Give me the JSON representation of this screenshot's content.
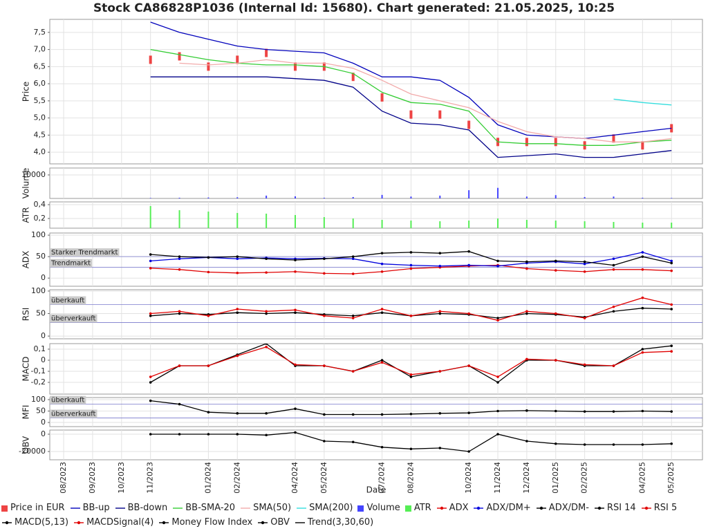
{
  "title": "Stock CA86828P1036 (Internal Id: 15680). Chart generated: 21.05.2025, 10:25",
  "x_axis": {
    "label": "Date",
    "xlim": [
      -0.48,
      22.07
    ],
    "x": [
      3,
      4,
      5,
      6,
      7,
      8,
      9,
      10,
      11,
      12,
      13,
      14,
      15,
      16,
      17,
      18,
      19,
      20,
      21
    ],
    "xticks": [
      {
        "value": 0,
        "label": "08/2023"
      },
      {
        "value": 1,
        "label": "09/2023"
      },
      {
        "value": 2,
        "label": "10/2023"
      },
      {
        "value": 3,
        "label": "11/2023"
      },
      {
        "value": 5,
        "label": "01/2024"
      },
      {
        "value": 6,
        "label": "02/2024"
      },
      {
        "value": 8,
        "label": "04/2024"
      },
      {
        "value": 9,
        "label": "05/2024"
      },
      {
        "value": 11,
        "label": "07/2024"
      },
      {
        "value": 12,
        "label": "08/2024"
      },
      {
        "value": 14,
        "label": "10/2024"
      },
      {
        "value": 15,
        "label": "11/2024"
      },
      {
        "value": 16,
        "label": "12/2024"
      },
      {
        "value": 17,
        "label": "01/2025"
      },
      {
        "value": 18,
        "label": "02/2025"
      },
      {
        "value": 20,
        "label": "04/2025"
      },
      {
        "value": 21,
        "label": "05/2025"
      }
    ]
  },
  "chart_data": [
    {
      "type": "line",
      "ylabel": "Price",
      "grid": true,
      "ylim": [
        3.66,
        7.88
      ],
      "yticks": [
        {
          "value": 4,
          "label": "4,0"
        },
        {
          "value": 4.5,
          "label": "4,5"
        },
        {
          "value": 5,
          "label": "5,0"
        },
        {
          "value": 5.5,
          "label": "5,5"
        },
        {
          "value": 6,
          "label": "6,0"
        },
        {
          "value": 6.5,
          "label": "6,5"
        },
        {
          "value": 7,
          "label": "7,0"
        },
        {
          "value": 7.5,
          "label": "7,5"
        }
      ],
      "series": [
        {
          "name": "Price in EUR",
          "kind": "candle",
          "color": "#ee4444",
          "values": [
            6.7,
            6.8,
            6.5,
            6.7,
            6.9,
            6.5,
            6.5,
            6.2,
            5.6,
            5.1,
            5.1,
            4.8,
            4.3,
            4.3,
            4.3,
            4.2,
            4.4,
            4.2,
            4.7
          ]
        },
        {
          "name": "BB-up",
          "kind": "line",
          "color": "#0000bb",
          "values": [
            7.8,
            7.5,
            7.3,
            7.1,
            7.0,
            6.95,
            6.9,
            6.6,
            6.2,
            6.2,
            6.1,
            5.6,
            4.8,
            4.5,
            4.45,
            4.4,
            4.5,
            4.6,
            4.7
          ]
        },
        {
          "name": "BB-down",
          "kind": "line",
          "color": "#000088",
          "values": [
            6.2,
            6.2,
            6.2,
            6.2,
            6.2,
            6.15,
            6.1,
            5.9,
            5.2,
            4.85,
            4.8,
            4.65,
            3.85,
            3.9,
            3.95,
            3.85,
            3.85,
            3.95,
            4.05
          ]
        },
        {
          "name": "BB-SMA-20",
          "kind": "line",
          "color": "#33cc33",
          "values": [
            7.0,
            6.85,
            6.7,
            6.6,
            6.55,
            6.55,
            6.5,
            6.3,
            5.75,
            5.45,
            5.4,
            5.2,
            4.3,
            4.25,
            4.25,
            4.2,
            4.2,
            4.3,
            4.35
          ]
        },
        {
          "name": "SMA(50)",
          "kind": "line",
          "color": "#f2aaaa",
          "values": [
            null,
            6.6,
            6.55,
            6.6,
            6.7,
            6.6,
            6.6,
            6.45,
            6.1,
            5.7,
            5.5,
            5.3,
            4.9,
            4.6,
            4.45,
            4.4,
            4.3,
            4.3,
            4.4
          ]
        },
        {
          "name": "SMA(200)",
          "kind": "line",
          "color": "#33dddd",
          "values": [
            null,
            null,
            null,
            null,
            null,
            null,
            null,
            null,
            null,
            null,
            null,
            null,
            null,
            null,
            null,
            null,
            5.55,
            5.45,
            5.38
          ]
        }
      ]
    },
    {
      "type": "bar",
      "ylabel": "Volume",
      "grid": true,
      "ylim": [
        0,
        12941
      ],
      "yticks": [
        10000
      ],
      "series": [
        {
          "name": "Volume",
          "kind": "bar",
          "color": "#4444ff",
          "values": [
            200,
            300,
            400,
            500,
            1200,
            900,
            300,
            600,
            1500,
            800,
            1200,
            3500,
            4500,
            800,
            1400,
            600,
            800,
            300,
            200
          ]
        }
      ]
    },
    {
      "type": "bar",
      "ylabel": "ATR",
      "grid": true,
      "ylim": [
        0.06,
        0.44
      ],
      "yticks": [
        {
          "value": 0.2,
          "label": "0,2"
        },
        {
          "value": 0.4,
          "label": "0,4"
        }
      ],
      "series": [
        {
          "name": "ATR",
          "kind": "bar",
          "color": "#55ee55",
          "values": [
            0.38,
            0.32,
            0.3,
            0.28,
            0.27,
            0.25,
            0.22,
            0.2,
            0.18,
            0.17,
            0.16,
            0.17,
            0.2,
            0.18,
            0.17,
            0.16,
            0.15,
            0.14,
            0.14
          ]
        }
      ]
    },
    {
      "type": "line",
      "ylabel": "ADX",
      "grid": true,
      "ylim": [
        -19,
        105
      ],
      "yticks": [
        0,
        50,
        100
      ],
      "hlines": [
        {
          "value": 50,
          "label": "Starker Trendmarkt"
        },
        {
          "value": 25,
          "label": "Trendmarkt"
        }
      ],
      "series": [
        {
          "name": "ADX",
          "kind": "marker_line",
          "color": "#e00000",
          "values": [
            23,
            20,
            14,
            12,
            13,
            15,
            11,
            10,
            15,
            22,
            25,
            28,
            30,
            22,
            18,
            15,
            20,
            20,
            17
          ]
        },
        {
          "name": "ADX/DM+",
          "kind": "marker_line",
          "color": "#0000dd",
          "values": [
            40,
            45,
            48,
            45,
            47,
            45,
            46,
            45,
            33,
            30,
            28,
            30,
            28,
            35,
            38,
            33,
            45,
            60,
            40
          ]
        },
        {
          "name": "ADX/DM-",
          "kind": "marker_line",
          "color": "#000000",
          "values": [
            55,
            50,
            48,
            50,
            45,
            42,
            45,
            50,
            58,
            60,
            58,
            62,
            40,
            38,
            40,
            38,
            30,
            50,
            35
          ]
        }
      ]
    },
    {
      "type": "line",
      "ylabel": "RSI",
      "grid": true,
      "ylim": [
        -6,
        103
      ],
      "yticks": [
        0,
        50,
        100
      ],
      "hlines": [
        {
          "value": 70,
          "label": "überkauft"
        },
        {
          "value": 30,
          "label": "überverkauft"
        }
      ],
      "series": [
        {
          "name": "RSI 14",
          "kind": "marker_line",
          "color": "#000000",
          "values": [
            45,
            50,
            48,
            52,
            50,
            52,
            48,
            45,
            52,
            45,
            50,
            48,
            40,
            50,
            48,
            42,
            55,
            62,
            60
          ]
        },
        {
          "name": "RSI 5",
          "kind": "marker_line",
          "color": "#e00000",
          "values": [
            50,
            55,
            45,
            60,
            55,
            58,
            45,
            40,
            60,
            45,
            55,
            50,
            35,
            55,
            50,
            40,
            65,
            85,
            70
          ]
        }
      ]
    },
    {
      "type": "line",
      "ylabel": "MACD",
      "grid": true,
      "ylim": [
        -0.306,
        0.15
      ],
      "yticks": [
        {
          "value": -0.2,
          "label": "-0,2"
        },
        {
          "value": -0.1,
          "label": "-0,1"
        },
        0,
        {
          "value": 0.1,
          "label": "0,1"
        }
      ],
      "series": [
        {
          "name": "MACD(5,13)",
          "kind": "marker_line",
          "color": "#000000",
          "values": [
            -0.2,
            -0.05,
            -0.05,
            0.05,
            0.15,
            -0.05,
            -0.05,
            -0.1,
            0,
            -0.15,
            -0.1,
            -0.05,
            -0.2,
            0,
            0,
            -0.05,
            -0.05,
            0.1,
            0.13
          ]
        },
        {
          "name": "MACDSignal(4)",
          "kind": "marker_line",
          "color": "#e00000",
          "values": [
            -0.15,
            -0.05,
            -0.05,
            0.04,
            0.12,
            -0.04,
            -0.05,
            -0.1,
            -0.02,
            -0.13,
            -0.1,
            -0.05,
            -0.15,
            0.01,
            0,
            -0.04,
            -0.05,
            0.07,
            0.08
          ]
        }
      ]
    },
    {
      "type": "line",
      "ylabel": "MFI",
      "grid": true,
      "ylim": [
        -18,
        109
      ],
      "yticks": [
        0,
        50,
        100
      ],
      "hlines": [
        {
          "value": 80,
          "label": "überkauft"
        },
        {
          "value": 20,
          "label": "überverkauft"
        }
      ],
      "series": [
        {
          "name": "Money Flow Index",
          "kind": "marker_line",
          "color": "#000000",
          "values": [
            95,
            80,
            45,
            40,
            40,
            60,
            35,
            35,
            35,
            37,
            40,
            42,
            50,
            52,
            50,
            48,
            48,
            50,
            48
          ]
        }
      ]
    },
    {
      "type": "line",
      "ylabel": "OBV",
      "grid": true,
      "ylim": [
        -29600,
        4800
      ],
      "yticks": [
        -20000,
        0
      ],
      "series": [
        {
          "name": "OBV",
          "kind": "marker_line",
          "color": "#000000",
          "values": [
            0,
            0,
            0,
            0,
            -1000,
            2000,
            -8000,
            -9000,
            -15000,
            -17000,
            -16000,
            -20000,
            0,
            -8000,
            -11000,
            -12000,
            -12000,
            -12000,
            -11000
          ]
        },
        {
          "name": "Trend(3,30,60)",
          "kind": "line",
          "color": "#000000",
          "values": [
            null,
            null,
            null,
            null,
            null,
            null,
            null,
            null,
            null,
            null,
            null,
            null,
            null,
            null,
            null,
            null,
            null,
            null,
            null
          ]
        }
      ]
    }
  ]
}
